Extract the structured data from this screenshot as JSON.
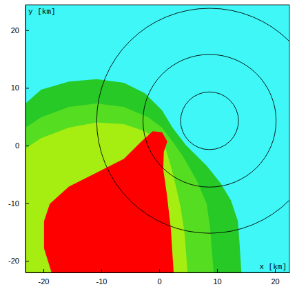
{
  "chart_data": {
    "type": "contour",
    "x_label": "x [km]",
    "y_label": "y [km]",
    "xlim": [
      -23.1,
      22.5
    ],
    "ylim": [
      -22.0,
      24.4
    ],
    "xticks": [
      -20,
      -10,
      0,
      10,
      20
    ],
    "yticks": [
      -20,
      -10,
      0,
      10,
      20
    ],
    "regions": [
      {
        "color": "#3ff7f7",
        "x": [
          -23.1,
          22.5,
          22.5,
          -23.1
        ],
        "y": [
          24.4,
          24.4,
          -22.0,
          -22.0
        ]
      },
      {
        "color": "#27c927",
        "x": [
          -23.1,
          -20.4,
          -15.6,
          -10.8,
          -6.1,
          -2.5,
          0.5,
          2.3,
          4.6,
          8.2,
          10.6,
          12.4,
          13.6,
          13.9,
          14.2,
          -23.1
        ],
        "y": [
          7.3,
          9.7,
          11.1,
          11.5,
          10.9,
          9.1,
          6.1,
          3.1,
          0.1,
          -3.5,
          -6.5,
          -9.5,
          -13.1,
          -17.2,
          -22.0,
          -22.0
        ]
      },
      {
        "color": "#55dd22",
        "x": [
          -23.1,
          -20.4,
          -15.6,
          -10.8,
          -6.1,
          -1.9,
          0.5,
          2.3,
          4.0,
          6.4,
          8.2,
          8.8,
          9.4,
          -23.1
        ],
        "y": [
          3.1,
          4.9,
          6.7,
          7.3,
          6.7,
          4.9,
          3.1,
          0.7,
          -1.7,
          -5.9,
          -10.1,
          -14.3,
          -22.0,
          -22.0
        ]
      },
      {
        "color": "#a6ee11",
        "x": [
          -23.1,
          -20.4,
          -15.6,
          -10.8,
          -6.1,
          -2.5,
          -0.7,
          1.1,
          2.0,
          2.9,
          3.7,
          4.4,
          4.9,
          -23.1
        ],
        "y": [
          -0.5,
          1.3,
          3.1,
          4.0,
          3.7,
          2.5,
          1.3,
          -0.5,
          -3.5,
          -7.1,
          -10.7,
          -15.4,
          -22.0,
          -22.0
        ]
      },
      {
        "color": "#ff0000",
        "x": [
          -18.6,
          -19.9,
          -19.9,
          -18.9,
          -15.6,
          -10.8,
          -6.1,
          -3.1,
          -1.1,
          0.5,
          1.4,
          0.8,
          0.7,
          1.3,
          2.0,
          2.5
        ],
        "y": [
          -22.0,
          -17.8,
          -13.1,
          -10.1,
          -7.1,
          -4.7,
          -2.3,
          0.7,
          2.5,
          2.3,
          0.7,
          -1.1,
          -4.1,
          -8.3,
          -14.3,
          -22.0
        ]
      }
    ],
    "circles": {
      "color": "#000000",
      "center_x": 8.7,
      "center_y": 4.3,
      "radii": [
        5.0,
        11.5,
        19.5
      ]
    }
  }
}
